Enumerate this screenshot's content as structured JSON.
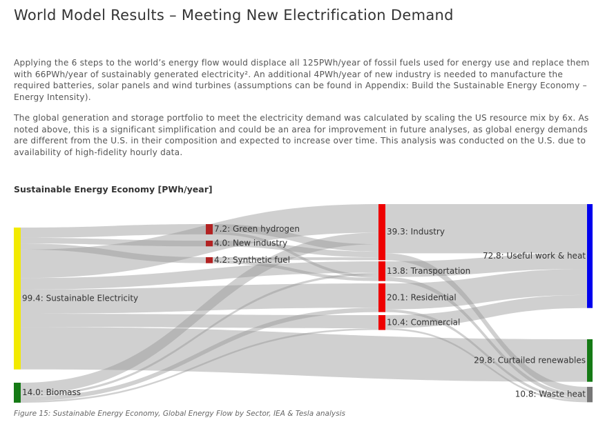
{
  "header": {
    "title": "World Model Results – Meeting New Electrification Demand"
  },
  "body": {
    "paragraphs": [
      "Applying the 6 steps to the world’s energy flow would displace all 125PWh/year of fossil fuels used for energy use and replace them with 66PWh/year of sustainably generated electricity². An additional 4PWh/year of new industry is needed to manufacture the required batteries, solar panels and wind turbines (assumptions can be found in Appendix: Build the Sustainable Energy Economy – Energy Intensity).",
      "The global generation and storage portfolio to meet the electricity demand was calculated by scaling the US resource mix by 6x. As noted above, this is a significant simplification and could be an area for improvement in future analyses, as global energy demands are different from the U.S. in their composition and expected to increase over time. This analysis was conducted on the U.S. due to availability of high-fidelity hourly data."
    ]
  },
  "chart_data": {
    "type": "sankey",
    "title": "Sustainable Energy Economy [PWh/year]",
    "nodes": [
      {
        "label": "99.4: Sustainable Electricity",
        "value": 99.4,
        "color": "#f2ea00"
      },
      {
        "label": "14.0: Biomass",
        "value": 14.0,
        "color": "#157a15"
      },
      {
        "label": "7.2: Green hydrogen",
        "value": 7.2,
        "color": "#b22222"
      },
      {
        "label": "4.0: New industry",
        "value": 4.0,
        "color": "#b22222"
      },
      {
        "label": "4.2: Synthetic fuel",
        "value": 4.2,
        "color": "#b22222"
      },
      {
        "label": "39.3: Industry",
        "value": 39.3,
        "color": "#ee0000"
      },
      {
        "label": "13.8: Transportation",
        "value": 13.8,
        "color": "#ee0000"
      },
      {
        "label": "20.1: Residential",
        "value": 20.1,
        "color": "#ee0000"
      },
      {
        "label": "10.4: Commercial",
        "value": 10.4,
        "color": "#ee0000"
      },
      {
        "label": "72.8: Useful work & heat",
        "value": 72.8,
        "color": "#0000ee"
      },
      {
        "label": "29.8: Curtailed renewables",
        "value": 29.8,
        "color": "#157a15"
      },
      {
        "label": "10.8: Waste heat",
        "value": 10.8,
        "color": "#777777"
      }
    ],
    "links": [
      {
        "source": 0,
        "target": 2,
        "value": 7.2
      },
      {
        "source": 0,
        "target": 3,
        "value": 4.0
      },
      {
        "source": 0,
        "target": 4,
        "value": 4.2
      },
      {
        "source": 0,
        "target": 5,
        "value": 20.0
      },
      {
        "source": 0,
        "target": 6,
        "value": 8.0
      },
      {
        "source": 0,
        "target": 7,
        "value": 17.0
      },
      {
        "source": 0,
        "target": 8,
        "value": 9.2
      },
      {
        "source": 0,
        "target": 10,
        "value": 29.8
      },
      {
        "source": 1,
        "target": 5,
        "value": 8.1
      },
      {
        "source": 1,
        "target": 6,
        "value": 1.6
      },
      {
        "source": 1,
        "target": 7,
        "value": 3.1
      },
      {
        "source": 1,
        "target": 8,
        "value": 1.2
      },
      {
        "source": 2,
        "target": 5,
        "value": 5.2
      },
      {
        "source": 2,
        "target": 6,
        "value": 2.0
      },
      {
        "source": 3,
        "target": 5,
        "value": 4.0
      },
      {
        "source": 4,
        "target": 5,
        "value": 2.0
      },
      {
        "source": 4,
        "target": 6,
        "value": 2.2
      },
      {
        "source": 5,
        "target": 9,
        "value": 34.5
      },
      {
        "source": 5,
        "target": 11,
        "value": 4.8
      },
      {
        "source": 6,
        "target": 9,
        "value": 11.0
      },
      {
        "source": 6,
        "target": 11,
        "value": 2.8
      },
      {
        "source": 7,
        "target": 9,
        "value": 18.2
      },
      {
        "source": 7,
        "target": 11,
        "value": 1.9
      },
      {
        "source": 8,
        "target": 9,
        "value": 9.1
      },
      {
        "source": 8,
        "target": 11,
        "value": 1.3
      }
    ]
  },
  "caption": "Figure 15: Sustainable Energy Economy, Global Energy Flow by Sector, IEA & Tesla analysis"
}
